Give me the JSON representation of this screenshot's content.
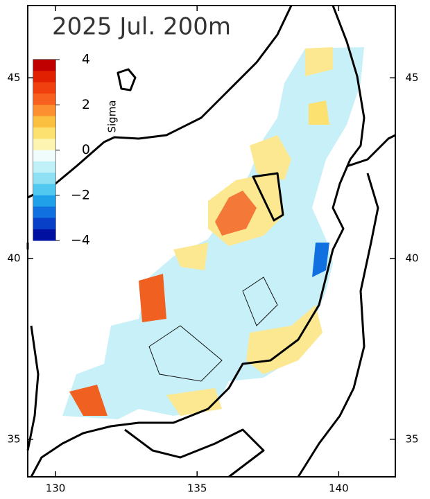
{
  "map": {
    "title": "2025 Jul. 200m",
    "xlim": [
      129.02,
      142.0
    ],
    "xticks": [
      130,
      135,
      140
    ],
    "ylim": [
      33.96,
      47.0
    ],
    "yticks": [
      35,
      40,
      45
    ],
    "colorbar": {
      "label": "Sigma",
      "lim": [
        -4,
        4
      ],
      "ticks": [
        4,
        2,
        0,
        {
          "value": -2,
          "label": "−2"
        },
        {
          "value": -4,
          "label": "−4"
        }
      ],
      "colors": [
        "#c00000",
        "#e02000",
        "#f04010",
        "#f86020",
        "#fc9030",
        "#fcc040",
        "#fce070",
        "#fcf4b0",
        "#f0fcfc",
        "#c0f0f8",
        "#90e0f4",
        "#50c8f0",
        "#20a0e8",
        "#1070e0",
        "#0840c8",
        "#0010a0"
      ]
    }
  }
}
